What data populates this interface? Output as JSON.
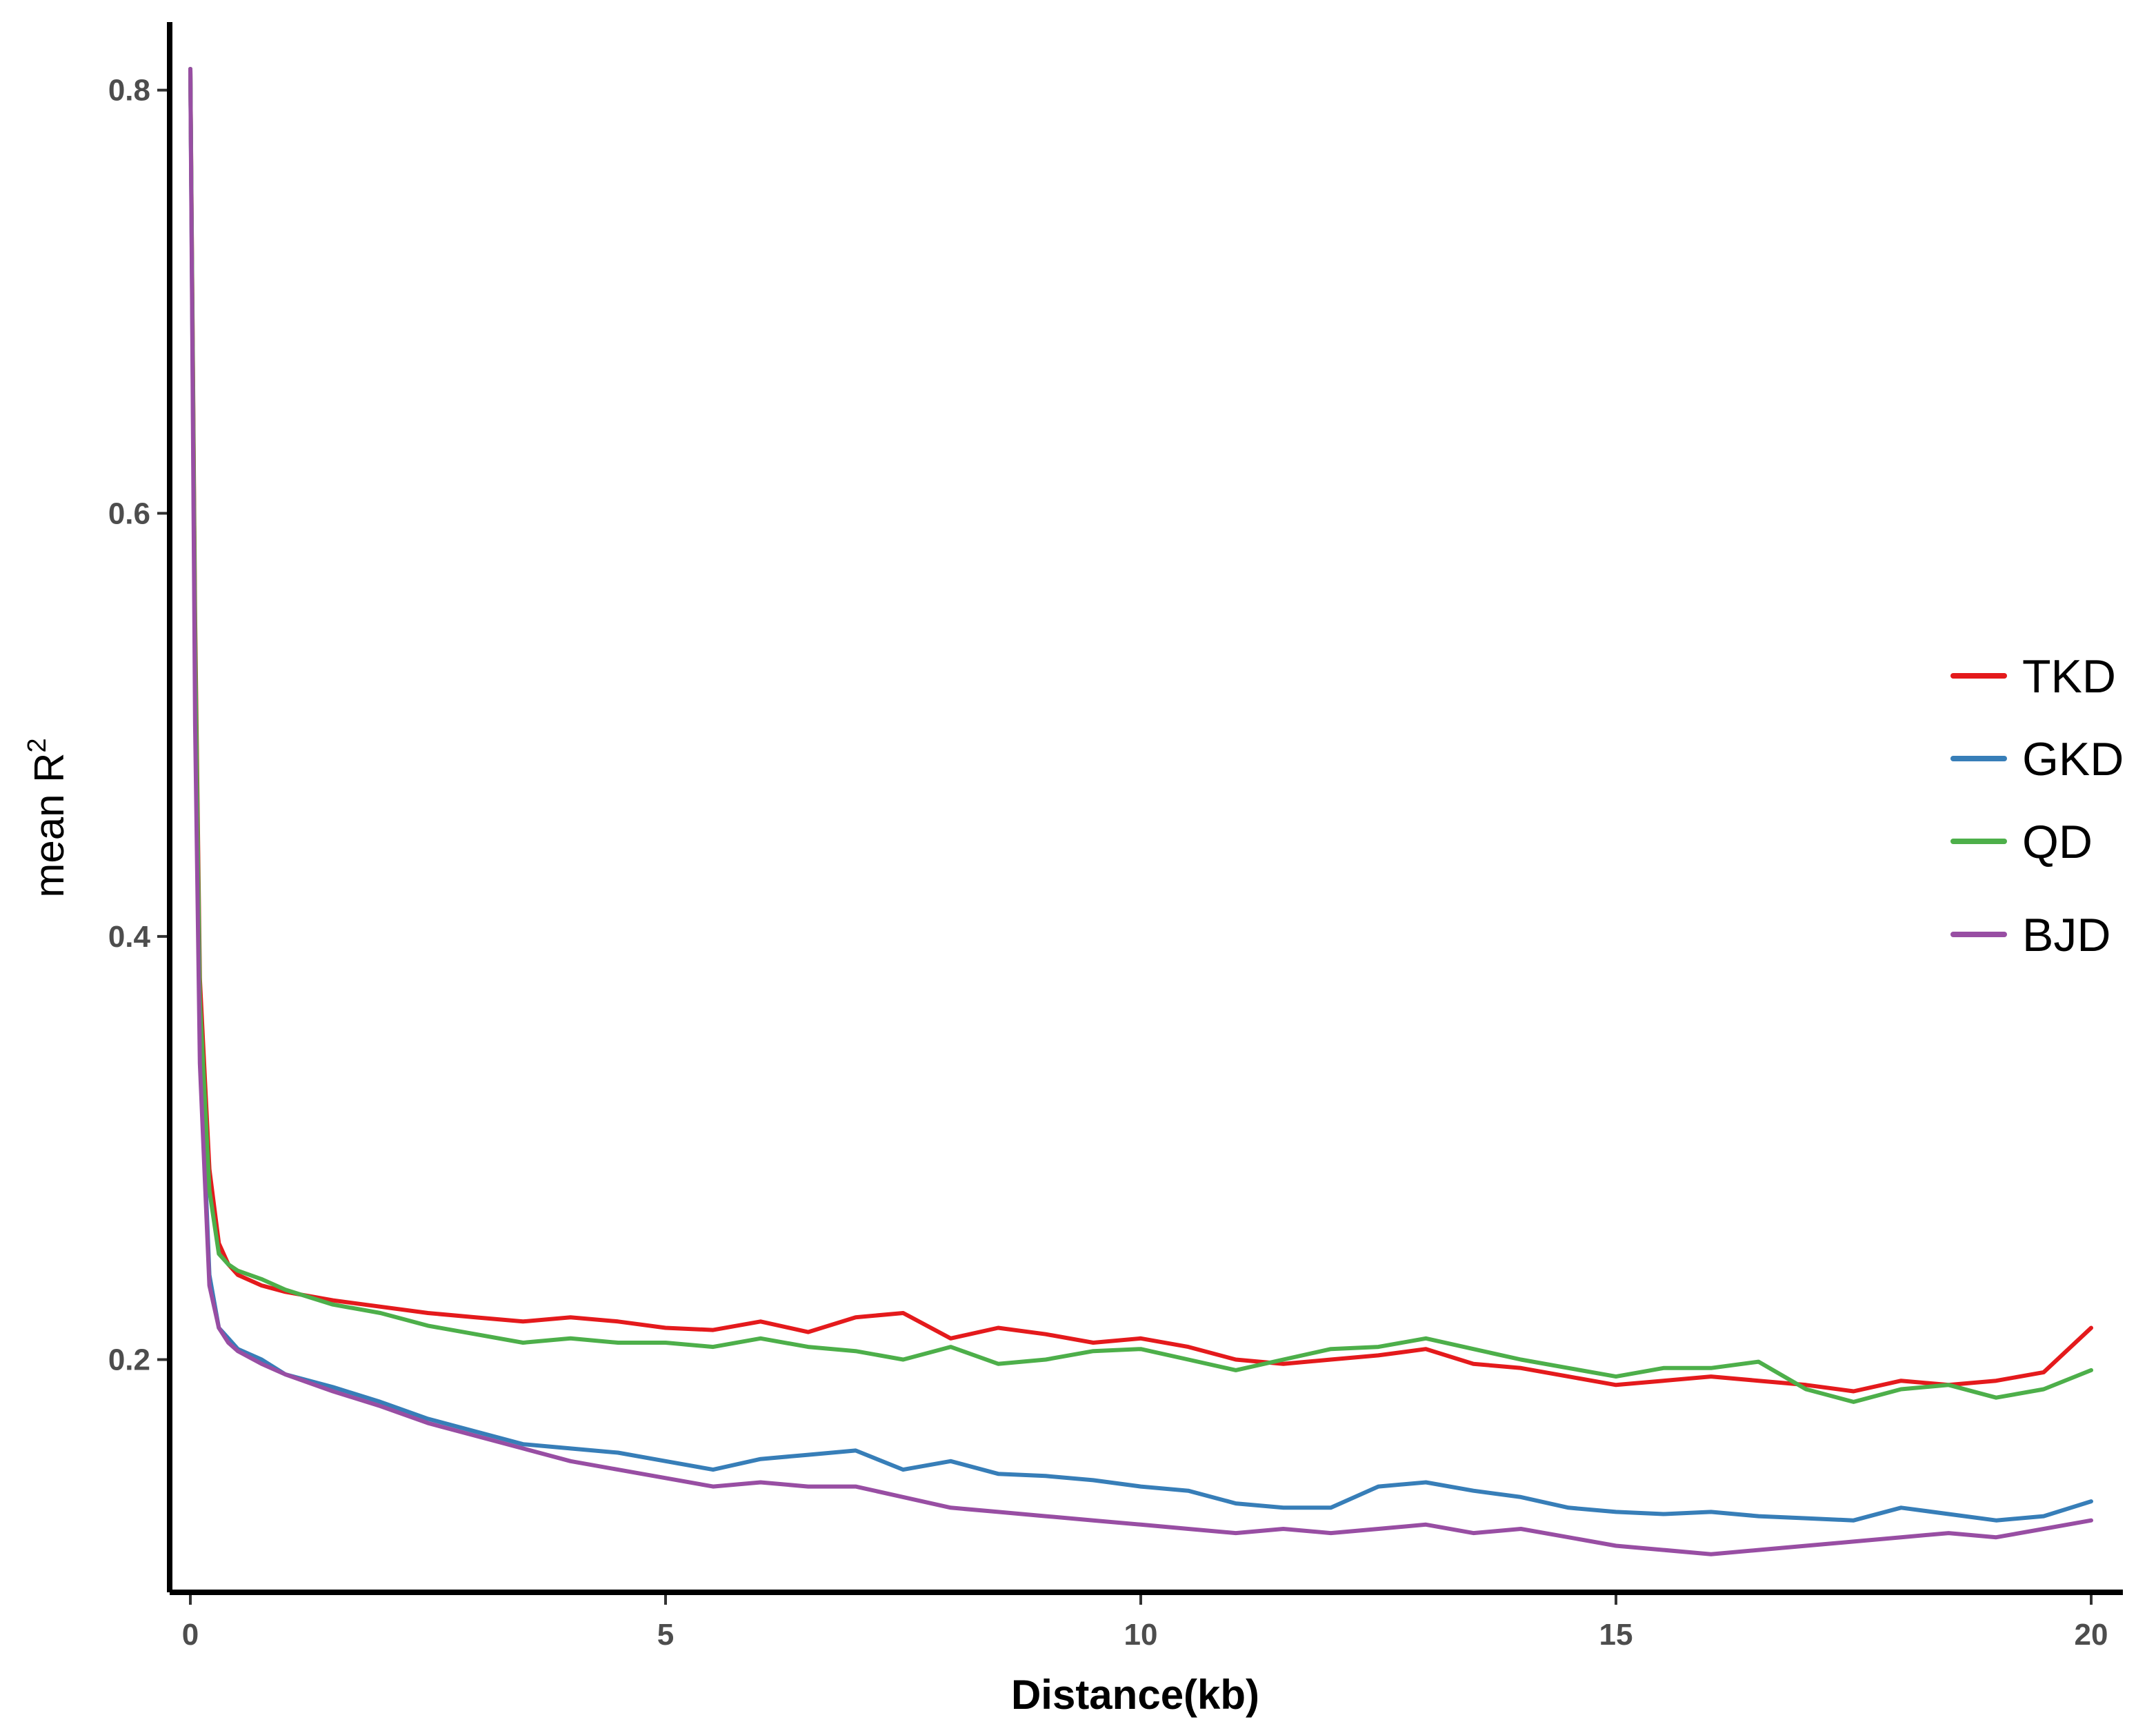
{
  "chart_data": {
    "type": "line",
    "xlabel": "Distance(kb)",
    "ylabel": "mean  R",
    "ylabel_superscript": "2",
    "xlim": [
      -0.2,
      20.6
    ],
    "ylim": [
      0.09,
      0.825
    ],
    "x_ticks": [
      0,
      5,
      10,
      15,
      20
    ],
    "y_ticks": [
      0.2,
      0.4,
      0.6,
      0.8
    ],
    "x_tick_labels": [
      "0",
      "5",
      "10",
      "15",
      "20"
    ],
    "y_tick_labels": [
      "0.2",
      "0.4",
      "0.6",
      "0.8"
    ],
    "grid": false,
    "legend_position": "right",
    "series": [
      {
        "name": "TKD",
        "color": "#e41a1c",
        "x": [
          0,
          0.05,
          0.1,
          0.2,
          0.3,
          0.4,
          0.5,
          0.75,
          1,
          1.5,
          2,
          2.5,
          3,
          3.5,
          4,
          4.5,
          5,
          5.5,
          6,
          6.5,
          7,
          7.5,
          8,
          8.5,
          9,
          9.5,
          10,
          10.5,
          11,
          11.5,
          12,
          12.5,
          13,
          13.5,
          14,
          14.5,
          15,
          15.5,
          16,
          16.5,
          17,
          17.5,
          18,
          18.5,
          19,
          19.5,
          20
        ],
        "y": [
          0.81,
          0.55,
          0.38,
          0.29,
          0.255,
          0.245,
          0.24,
          0.235,
          0.232,
          0.228,
          0.225,
          0.222,
          0.22,
          0.218,
          0.22,
          0.218,
          0.215,
          0.214,
          0.218,
          0.213,
          0.22,
          0.222,
          0.21,
          0.215,
          0.212,
          0.208,
          0.21,
          0.206,
          0.2,
          0.198,
          0.2,
          0.202,
          0.205,
          0.198,
          0.196,
          0.192,
          0.188,
          0.19,
          0.192,
          0.19,
          0.188,
          0.185,
          0.19,
          0.188,
          0.19,
          0.194,
          0.215
        ]
      },
      {
        "name": "GKD",
        "color": "#377eb8",
        "x": [
          0,
          0.05,
          0.1,
          0.2,
          0.3,
          0.4,
          0.5,
          0.75,
          1,
          1.5,
          2,
          2.5,
          3,
          3.5,
          4,
          4.5,
          5,
          5.5,
          6,
          6.5,
          7,
          7.5,
          8,
          8.5,
          9,
          9.5,
          10,
          10.5,
          11,
          11.5,
          12,
          12.5,
          13,
          13.5,
          14,
          14.5,
          15,
          15.5,
          16,
          16.5,
          17,
          17.5,
          18,
          18.5,
          19,
          19.5,
          20
        ],
        "y": [
          0.81,
          0.52,
          0.35,
          0.24,
          0.215,
          0.21,
          0.205,
          0.2,
          0.193,
          0.187,
          0.18,
          0.172,
          0.166,
          0.16,
          0.158,
          0.156,
          0.152,
          0.148,
          0.153,
          0.155,
          0.157,
          0.148,
          0.152,
          0.146,
          0.145,
          0.143,
          0.14,
          0.138,
          0.132,
          0.13,
          0.13,
          0.14,
          0.142,
          0.138,
          0.135,
          0.13,
          0.128,
          0.127,
          0.128,
          0.126,
          0.125,
          0.124,
          0.13,
          0.127,
          0.124,
          0.126,
          0.133
        ]
      },
      {
        "name": "QD",
        "color": "#4daf4a",
        "x": [
          0,
          0.05,
          0.1,
          0.2,
          0.3,
          0.4,
          0.5,
          0.75,
          1,
          1.5,
          2,
          2.5,
          3,
          3.5,
          4,
          4.5,
          5,
          5.5,
          6,
          6.5,
          7,
          7.5,
          8,
          8.5,
          9,
          9.5,
          10,
          10.5,
          11,
          11.5,
          12,
          12.5,
          13,
          13.5,
          14,
          14.5,
          15,
          15.5,
          16,
          16.5,
          17,
          17.5,
          18,
          18.5,
          19,
          19.5,
          20
        ],
        "y": [
          0.81,
          0.54,
          0.37,
          0.28,
          0.25,
          0.245,
          0.242,
          0.238,
          0.233,
          0.226,
          0.222,
          0.216,
          0.212,
          0.208,
          0.21,
          0.208,
          0.208,
          0.206,
          0.21,
          0.206,
          0.204,
          0.2,
          0.206,
          0.198,
          0.2,
          0.204,
          0.205,
          0.2,
          0.195,
          0.2,
          0.205,
          0.206,
          0.21,
          0.205,
          0.2,
          0.196,
          0.192,
          0.196,
          0.196,
          0.199,
          0.186,
          0.18,
          0.186,
          0.188,
          0.182,
          0.186,
          0.195
        ]
      },
      {
        "name": "BJD",
        "color": "#984ea3",
        "x": [
          0,
          0.05,
          0.1,
          0.2,
          0.3,
          0.4,
          0.5,
          0.75,
          1,
          1.5,
          2,
          2.5,
          3,
          3.5,
          4,
          4.5,
          5,
          5.5,
          6,
          6.5,
          7,
          7.5,
          8,
          8.5,
          9,
          9.5,
          10,
          10.5,
          11,
          11.5,
          12,
          12.5,
          13,
          13.5,
          14,
          14.5,
          15,
          15.5,
          16,
          16.5,
          17,
          17.5,
          18,
          18.5,
          19,
          19.5,
          20
        ],
        "y": [
          0.81,
          0.5,
          0.34,
          0.235,
          0.215,
          0.208,
          0.204,
          0.198,
          0.193,
          0.185,
          0.178,
          0.17,
          0.164,
          0.158,
          0.152,
          0.148,
          0.144,
          0.14,
          0.142,
          0.14,
          0.14,
          0.135,
          0.13,
          0.128,
          0.126,
          0.124,
          0.122,
          0.12,
          0.118,
          0.12,
          0.118,
          0.12,
          0.122,
          0.118,
          0.12,
          0.116,
          0.112,
          0.11,
          0.108,
          0.11,
          0.112,
          0.114,
          0.116,
          0.118,
          0.116,
          0.12,
          0.124
        ]
      }
    ]
  }
}
